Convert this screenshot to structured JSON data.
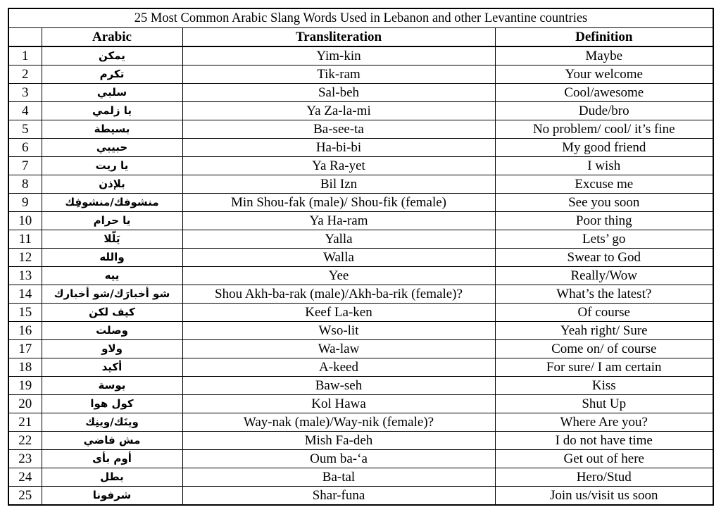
{
  "title": "25 Most Common Arabic Slang Words Used in Lebanon and other Levantine countries",
  "headers": {
    "number": "",
    "arabic": "Arabic",
    "transliteration": "Transliteration",
    "definition": "Definition"
  },
  "rows": [
    {
      "n": "1",
      "ar": "يمكن",
      "tr": "Yim-kin",
      "def": "Maybe"
    },
    {
      "n": "2",
      "ar": "تكرم",
      "tr": "Tik-ram",
      "def": "Your welcome"
    },
    {
      "n": "3",
      "ar": "سلبي",
      "tr": "Sal-beh",
      "def": "Cool/awesome"
    },
    {
      "n": "4",
      "ar": "يا زلمي",
      "tr": "Ya Za-la-mi",
      "def": "Dude/bro"
    },
    {
      "n": "5",
      "ar": "بسيطة",
      "tr": "Ba-see-ta",
      "def": "No problem/ cool/ it’s fine"
    },
    {
      "n": "6",
      "ar": "حبيبي",
      "tr": "Ha-bi-bi",
      "def": "My good friend"
    },
    {
      "n": "7",
      "ar": "يا ريت",
      "tr": "Ya Ra-yet",
      "def": "I wish"
    },
    {
      "n": "8",
      "ar": "بلإذن",
      "tr": "Bil Izn",
      "def": "Excuse me"
    },
    {
      "n": "9",
      "ar": "منشوفك/منشوفِك",
      "tr": "Min Shou-fak (male)/ Shou-fik (female)",
      "def": "See you soon"
    },
    {
      "n": "10",
      "ar": "يا حرام",
      "tr": "Ya Ha-ram",
      "def": "Poor thing"
    },
    {
      "n": "11",
      "ar": "يَلّلا",
      "tr": "Yalla",
      "def": "Lets’ go"
    },
    {
      "n": "12",
      "ar": "والله",
      "tr": "Walla",
      "def": "Swear to God"
    },
    {
      "n": "13",
      "ar": "ييه",
      "tr": "Yee",
      "def": "Really/Wow"
    },
    {
      "n": "14",
      "ar": "شو أخبارَك/شو أخبارك",
      "tr": "Shou Akh-ba-rak (male)/Akh-ba-rik (female)?",
      "def": "What’s the latest?"
    },
    {
      "n": "15",
      "ar": "كيف لكن",
      "tr": "Keef La-ken",
      "def": "Of course"
    },
    {
      "n": "16",
      "ar": "وصلت",
      "tr": "Wso-lit",
      "def": "Yeah right/ Sure"
    },
    {
      "n": "17",
      "ar": "ولاو",
      "tr": "Wa-law",
      "def": "Come on/ of course"
    },
    {
      "n": "18",
      "ar": "أكيد",
      "tr": "A-keed",
      "def": "For sure/ I am certain"
    },
    {
      "n": "19",
      "ar": "بوسة",
      "tr": "Baw-seh",
      "def": "Kiss"
    },
    {
      "n": "20",
      "ar": "كول هوا",
      "tr": "Kol Hawa",
      "def": "Shut Up"
    },
    {
      "n": "21",
      "ar": "وينَك/وينِك",
      "tr": "Way-nak (male)/Way-nik (female)?",
      "def": "Where Are you?"
    },
    {
      "n": "22",
      "ar": "مش فاضي",
      "tr": "Mish Fa-deh",
      "def": "I do not have time"
    },
    {
      "n": "23",
      "ar": "أوم بأى",
      "tr": "Oum ba-‘a",
      "def": "Get out of here"
    },
    {
      "n": "24",
      "ar": "بطل",
      "tr": "Ba-tal",
      "def": "Hero/Stud"
    },
    {
      "n": "25",
      "ar": "شرفونا",
      "tr": "Shar-funa",
      "def": "Join us/visit us soon"
    }
  ]
}
